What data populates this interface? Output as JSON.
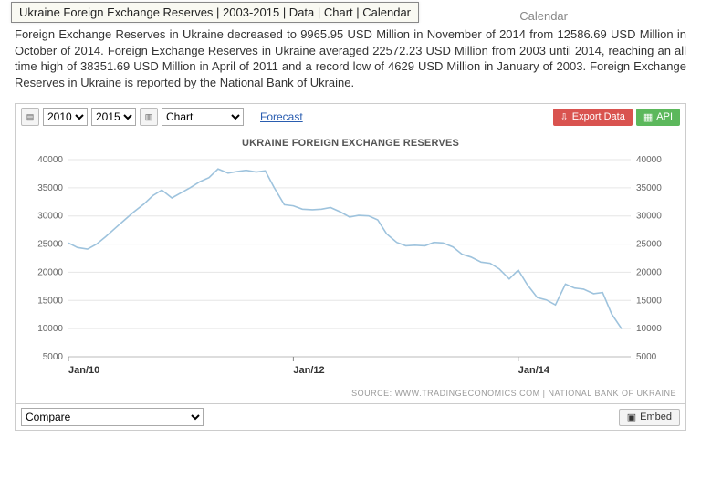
{
  "tooltip": "Ukraine Foreign Exchange Reserves | 2003-2015 | Data | Chart | Calendar",
  "crumb_tail": "Calendar",
  "description": "Foreign Exchange Reserves in Ukraine decreased to 9965.95 USD Million in November of 2014 from 12586.69 USD Million in October of 2014. Foreign Exchange Reserves in Ukraine averaged 22572.23 USD Million from 2003 until 2014, reaching an all time high of 38351.69 USD Million in April of 2011 and a record low of 4629 USD Million in January of 2003. Foreign Exchange Reserves in Ukraine is reported by the National Bank of Ukraine.",
  "toolbar": {
    "year_from": "2010",
    "year_to": "2015",
    "view_mode": "Chart",
    "forecast": "Forecast",
    "export": "Export Data",
    "api": "API"
  },
  "chart": {
    "type": "line",
    "title": "UKRAINE FOREIGN EXCHANGE RESERVES",
    "line_color": "#9ec3dd",
    "line_width": 1.6,
    "background": "#ffffff",
    "grid_color": "#e6e6e6",
    "ylim": [
      5000,
      40000
    ],
    "ytick_step": 5000,
    "yticks": [
      5000,
      10000,
      15000,
      20000,
      25000,
      30000,
      35000,
      40000
    ],
    "x_start": 2010.0,
    "x_end": 2015.0,
    "xticks": [
      {
        "x": 2010.0,
        "label": "Jan/10"
      },
      {
        "x": 2012.0,
        "label": "Jan/12"
      },
      {
        "x": 2014.0,
        "label": "Jan/14"
      }
    ],
    "data": [
      [
        2010.0,
        25200
      ],
      [
        2010.08,
        24400
      ],
      [
        2010.17,
        24100
      ],
      [
        2010.25,
        25000
      ],
      [
        2010.33,
        26300
      ],
      [
        2010.42,
        27900
      ],
      [
        2010.5,
        29300
      ],
      [
        2010.58,
        30700
      ],
      [
        2010.67,
        32100
      ],
      [
        2010.75,
        33600
      ],
      [
        2010.83,
        34600
      ],
      [
        2010.92,
        33200
      ],
      [
        2011.0,
        34100
      ],
      [
        2011.08,
        35000
      ],
      [
        2011.17,
        36100
      ],
      [
        2011.25,
        36800
      ],
      [
        2011.33,
        38350
      ],
      [
        2011.42,
        37600
      ],
      [
        2011.5,
        37900
      ],
      [
        2011.58,
        38100
      ],
      [
        2011.67,
        37800
      ],
      [
        2011.75,
        38000
      ],
      [
        2011.83,
        35000
      ],
      [
        2011.92,
        32000
      ],
      [
        2012.0,
        31800
      ],
      [
        2012.08,
        31200
      ],
      [
        2012.17,
        31100
      ],
      [
        2012.25,
        31200
      ],
      [
        2012.33,
        31500
      ],
      [
        2012.42,
        30700
      ],
      [
        2012.5,
        29800
      ],
      [
        2012.58,
        30100
      ],
      [
        2012.67,
        30000
      ],
      [
        2012.75,
        29300
      ],
      [
        2012.83,
        26800
      ],
      [
        2012.92,
        25300
      ],
      [
        2013.0,
        24700
      ],
      [
        2013.08,
        24800
      ],
      [
        2013.17,
        24700
      ],
      [
        2013.25,
        25300
      ],
      [
        2013.33,
        25200
      ],
      [
        2013.42,
        24500
      ],
      [
        2013.5,
        23200
      ],
      [
        2013.58,
        22700
      ],
      [
        2013.67,
        21800
      ],
      [
        2013.75,
        21600
      ],
      [
        2013.83,
        20600
      ],
      [
        2013.92,
        18800
      ],
      [
        2014.0,
        20400
      ],
      [
        2014.08,
        17800
      ],
      [
        2014.17,
        15500
      ],
      [
        2014.25,
        15100
      ],
      [
        2014.33,
        14200
      ],
      [
        2014.42,
        17900
      ],
      [
        2014.5,
        17200
      ],
      [
        2014.58,
        17000
      ],
      [
        2014.67,
        16200
      ],
      [
        2014.75,
        16400
      ],
      [
        2014.83,
        12600
      ],
      [
        2014.92,
        9966
      ]
    ]
  },
  "source_line": "SOURCE: WWW.TRADINGECONOMICS.COM  |  NATIONAL BANK OF UKRAINE",
  "bottom": {
    "compare": "Compare",
    "embed": "Embed"
  }
}
